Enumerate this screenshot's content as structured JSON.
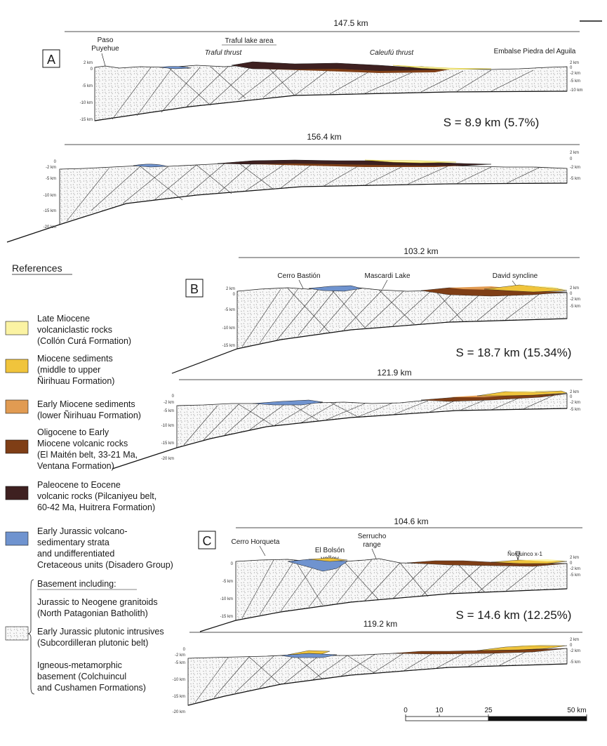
{
  "legend": {
    "title": "References",
    "items": [
      {
        "lines": [
          "Late Miocene",
          "volcaniclastic rocks",
          "(Collón Curá Formation)"
        ],
        "color": "#fbf3a3"
      },
      {
        "lines": [
          "Miocene sediments",
          "(middle to upper",
          "Ñirihuau Formation)"
        ],
        "color": "#f0c43c"
      },
      {
        "lines": [
          "Early Miocene sediments",
          "(lower Ñirihuau Formation)"
        ],
        "color": "#e19b52"
      },
      {
        "lines": [
          "Oligocene to Early",
          "Miocene volcanic rocks",
          "(El Maitén belt, 33-21 Ma,",
          "Ventana Formation)"
        ],
        "color": "#7f3e16"
      },
      {
        "lines": [
          "Paleocene to Eocene",
          "volcanic rocks (Pilcaniyeu belt,",
          "60-42 Ma, Huitrera Formation)"
        ],
        "color": "#3e2020"
      },
      {
        "lines": [
          "Early Jurassic volcano-",
          "sedimentary strata",
          "and undifferentiated",
          "Cretaceous units (Disadero Group)"
        ],
        "color": "#6f93cf"
      }
    ],
    "basement": {
      "heading": "Basement including:",
      "groups": [
        [
          "Jurassic to Neogene granitoids",
          "(North Patagonian Batholith)"
        ],
        [
          "Early Jurassic plutonic intrusives",
          "(Subcordilleran plutonic belt)"
        ],
        [
          "Igneous-metamorphic",
          "basement (Colchuincul",
          "and Cushamen Formations)"
        ]
      ]
    }
  },
  "sections": {
    "a": {
      "letter": "A",
      "top_length": "147.5 km",
      "bottom_length": "156.4 km",
      "shortening": "S = 8.9 km (5.7%)",
      "labels": {
        "paso": [
          "Paso",
          "Puyehue"
        ],
        "traful_area": "Traful lake area",
        "traful_thrust": "Traful thrust",
        "caleufu": "Caleufú thrust",
        "embalse": "Embalse Piedra del Aguila"
      },
      "top_left_ticks": [
        "2 km",
        "0",
        "-5 km",
        "-10 km",
        "-15 km"
      ],
      "top_right_ticks": [
        "2 km",
        "0",
        "-2 km",
        "-5 km",
        "-10 km"
      ],
      "bottom_left_ticks": [
        "0",
        "-2 km",
        "-5 km",
        "-10 km",
        "-15 km",
        "-20 km"
      ],
      "bottom_right_ticks": [
        "2 km",
        "0",
        "-2 km",
        "-5 km"
      ]
    },
    "b": {
      "letter": "B",
      "top_length": "103.2 km",
      "bottom_length": "121.9 km",
      "shortening": "S = 18.7 km (15.34%)",
      "labels": {
        "bastion": "Cerro Bastión",
        "mascardi": "Mascardi Lake",
        "david": "David syncline"
      },
      "top_left_ticks": [
        "2 km",
        "0",
        "-5 km",
        "-10 km",
        "-15 km"
      ],
      "top_right_ticks": [
        "2 km",
        "0",
        "-2 km",
        "-5 km"
      ],
      "bottom_left_ticks": [
        "0",
        "-2 km",
        "-5 km",
        "-10 km",
        "-15 km",
        "-20 km"
      ],
      "bottom_right_ticks": [
        "2 km",
        "0",
        "-2 km",
        "-5 km"
      ]
    },
    "c": {
      "letter": "C",
      "top_length": "104.6 km",
      "bottom_length": "119.2 km",
      "shortening": "S = 14.6 km (12.25%)",
      "labels": {
        "horqueta": "Cerro Horqueta",
        "bolson": [
          "El Bolsón",
          "valley"
        ],
        "serrucho": [
          "Serrucho",
          "range"
        ],
        "norquinco": "Ñorquinco x-1"
      },
      "top_left_ticks": [
        "0",
        "-5 km",
        "-10 km",
        "-15 km"
      ],
      "top_right_ticks": [
        "2 km",
        "0",
        "-2 km",
        "-5 km"
      ],
      "bottom_left_ticks": [
        "0",
        "-2 km",
        "-5 km",
        "-10 km",
        "-15 km",
        "-20 km"
      ],
      "bottom_right_ticks": [
        "2 km",
        "0",
        "-2 km",
        "-5 km"
      ]
    }
  },
  "scale_bar": {
    "ticks": [
      "0",
      "10",
      "25",
      "50 km"
    ]
  },
  "colors": {
    "collon_cura": "#fbf3a3",
    "nirihuau_upper": "#f0c43c",
    "nirihuau_lower": "#e19b52",
    "ventana": "#7f3e16",
    "huitrera": "#3e2020",
    "jurassic": "#6f93cf",
    "basement_fill": "#f7f7f7",
    "outline": "#1a1a1a"
  }
}
